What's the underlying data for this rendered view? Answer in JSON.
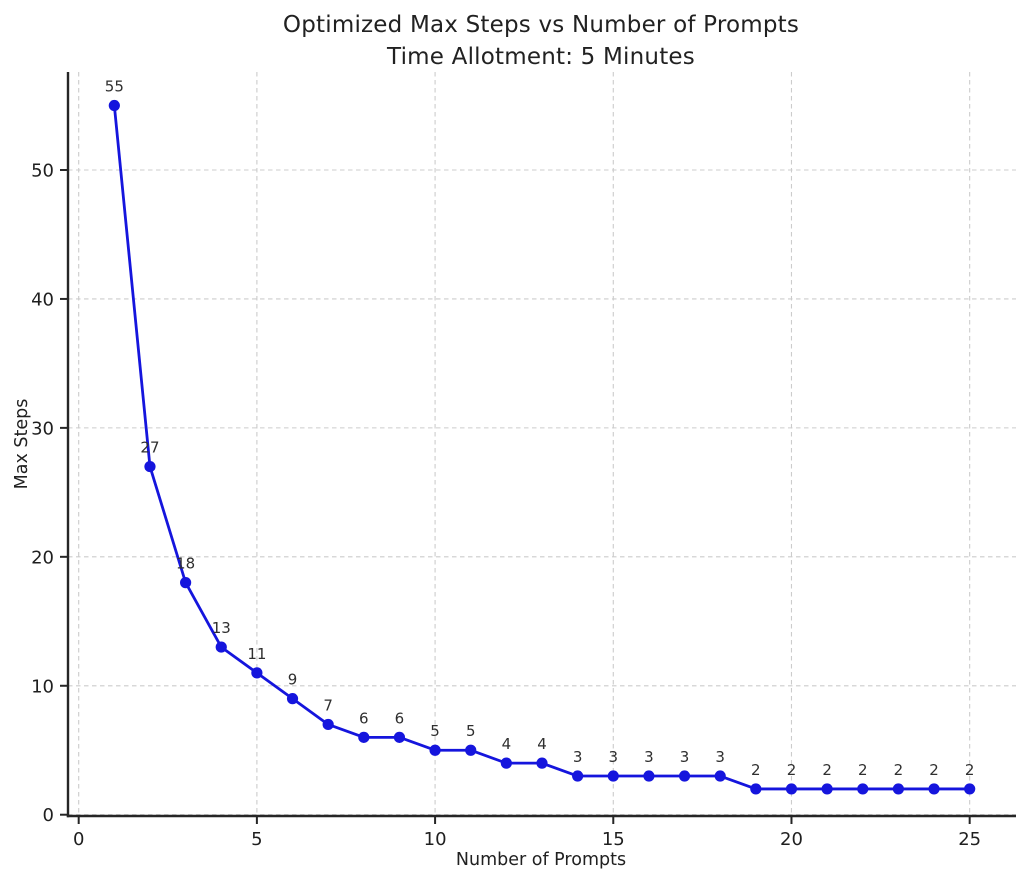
{
  "chart_data": {
    "type": "line",
    "title": "Optimized Max Steps vs Number of Prompts",
    "subtitle": "Time Allotment: 5 Minutes",
    "xlabel": "Number of Prompts",
    "ylabel": "Max Steps",
    "x": [
      1,
      2,
      3,
      4,
      5,
      6,
      7,
      8,
      9,
      10,
      11,
      12,
      13,
      14,
      15,
      16,
      17,
      18,
      19,
      20,
      21,
      22,
      23,
      24,
      25
    ],
    "y": [
      55,
      27,
      18,
      13,
      11,
      9,
      7,
      6,
      6,
      5,
      5,
      4,
      4,
      3,
      3,
      3,
      3,
      3,
      2,
      2,
      2,
      2,
      2,
      2,
      2
    ],
    "point_labels": [
      "55",
      "27",
      "18",
      "13",
      "11",
      "9",
      "7",
      "6",
      "6",
      "5",
      "5",
      "4",
      "4",
      "3",
      "3",
      "3",
      "3",
      "3",
      "2",
      "2",
      "2",
      "2",
      "2",
      "2",
      "2"
    ],
    "x_ticks": [
      0,
      5,
      10,
      15,
      20,
      25
    ],
    "y_ticks": [
      0,
      10,
      20,
      30,
      40,
      50
    ],
    "xlim": [
      -0.3,
      26.3
    ],
    "ylim": [
      -0.1,
      57.6
    ],
    "grid": true,
    "grid_style": "dashed",
    "legend": "none",
    "line_color": "#1515dd",
    "marker_color": "#1515dd",
    "grid_color": "#cccccc",
    "axis_color": "#262626",
    "text_color": "#1f1f1f",
    "annotation_color": "#2f2f2f"
  }
}
